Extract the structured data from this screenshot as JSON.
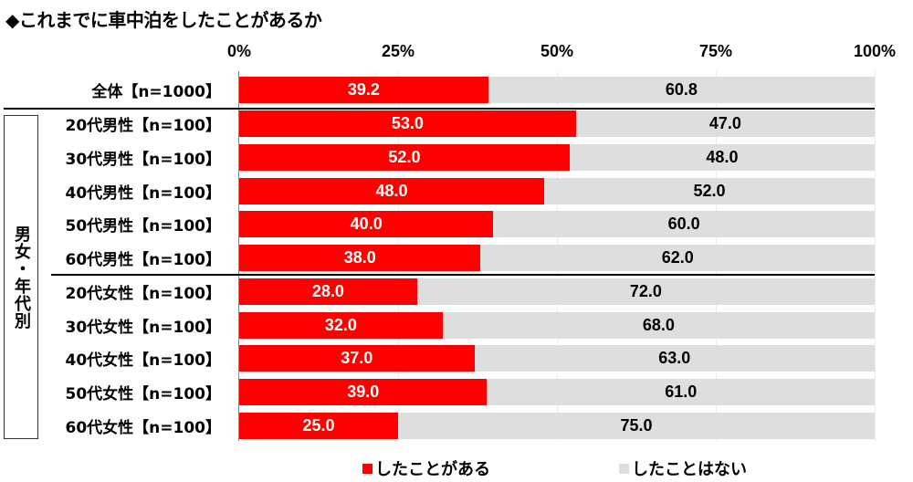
{
  "title": "◆これまでに車中泊をしたことがあるか",
  "axis": {
    "ticks": [
      "0%",
      "25%",
      "50%",
      "75%",
      "100%"
    ]
  },
  "group_label": "男女・年代別",
  "legend": [
    {
      "label": "したことがある",
      "color": "#ff0000"
    },
    {
      "label": "したことはない",
      "color": "#dedede"
    }
  ],
  "rows": [
    {
      "label": "全体【n=1000】",
      "yes": "39.2",
      "no": "60.8"
    },
    {
      "label": "20代男性【n=100】",
      "yes": "53.0",
      "no": "47.0"
    },
    {
      "label": "30代男性【n=100】",
      "yes": "52.0",
      "no": "48.0"
    },
    {
      "label": "40代男性【n=100】",
      "yes": "48.0",
      "no": "52.0"
    },
    {
      "label": "50代男性【n=100】",
      "yes": "40.0",
      "no": "60.0"
    },
    {
      "label": "60代男性【n=100】",
      "yes": "38.0",
      "no": "62.0"
    },
    {
      "label": "20代女性【n=100】",
      "yes": "28.0",
      "no": "72.0"
    },
    {
      "label": "30代女性【n=100】",
      "yes": "32.0",
      "no": "68.0"
    },
    {
      "label": "40代女性【n=100】",
      "yes": "37.0",
      "no": "63.0"
    },
    {
      "label": "50代女性【n=100】",
      "yes": "39.0",
      "no": "61.0"
    },
    {
      "label": "60代女性【n=100】",
      "yes": "25.0",
      "no": "75.0"
    }
  ],
  "chart_data": {
    "type": "bar",
    "orientation": "horizontal",
    "stacked": true,
    "percent_stacked": true,
    "title": "◆これまでに車中泊をしたことがあるか",
    "categories": [
      "全体【n=1000】",
      "20代男性【n=100】",
      "30代男性【n=100】",
      "40代男性【n=100】",
      "50代男性【n=100】",
      "60代男性【n=100】",
      "20代女性【n=100】",
      "30代女性【n=100】",
      "40代女性【n=100】",
      "50代女性【n=100】",
      "60代女性【n=100】"
    ],
    "series": [
      {
        "name": "したことがある",
        "color": "#ff0000",
        "values": [
          39.2,
          53.0,
          52.0,
          48.0,
          40.0,
          38.0,
          28.0,
          32.0,
          37.0,
          39.0,
          25.0
        ]
      },
      {
        "name": "したことはない",
        "color": "#dedede",
        "values": [
          60.8,
          47.0,
          48.0,
          52.0,
          60.0,
          62.0,
          72.0,
          68.0,
          63.0,
          61.0,
          75.0
        ]
      }
    ],
    "xlabel": "",
    "ylabel": "",
    "xlim": [
      0,
      100
    ],
    "x_ticks": [
      "0%",
      "25%",
      "50%",
      "75%",
      "100%"
    ],
    "group_annotation": "男女・年代別",
    "grid": true,
    "legend_position": "bottom"
  }
}
